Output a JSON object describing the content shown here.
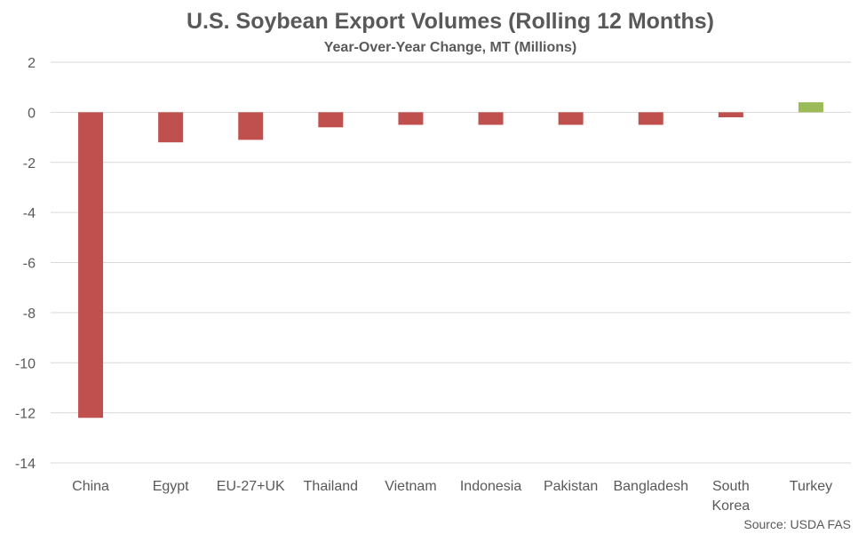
{
  "chart_data": {
    "type": "bar",
    "title": "U.S. Soybean Export Volumes (Rolling 12 Months)",
    "subtitle": "Year-Over-Year Change, MT (Millions)",
    "categories": [
      "China",
      "Egypt",
      "EU-27+UK",
      "Thailand",
      "Vietnam",
      "Indonesia",
      "Pakistan",
      "Bangladesh",
      "South Korea",
      "Turkey"
    ],
    "values": [
      -12.2,
      -1.2,
      -1.1,
      -0.6,
      -0.5,
      -0.5,
      -0.5,
      -0.5,
      -0.2,
      0.4
    ],
    "ylim": [
      -14,
      2
    ],
    "yticks": [
      2,
      0,
      -2,
      -4,
      -6,
      -8,
      -10,
      -12,
      -14
    ],
    "grid": true,
    "legend": "none",
    "colors": {
      "negative": "#c0504d",
      "positive": "#9bbb59"
    }
  },
  "source": "Source: USDA FAS"
}
